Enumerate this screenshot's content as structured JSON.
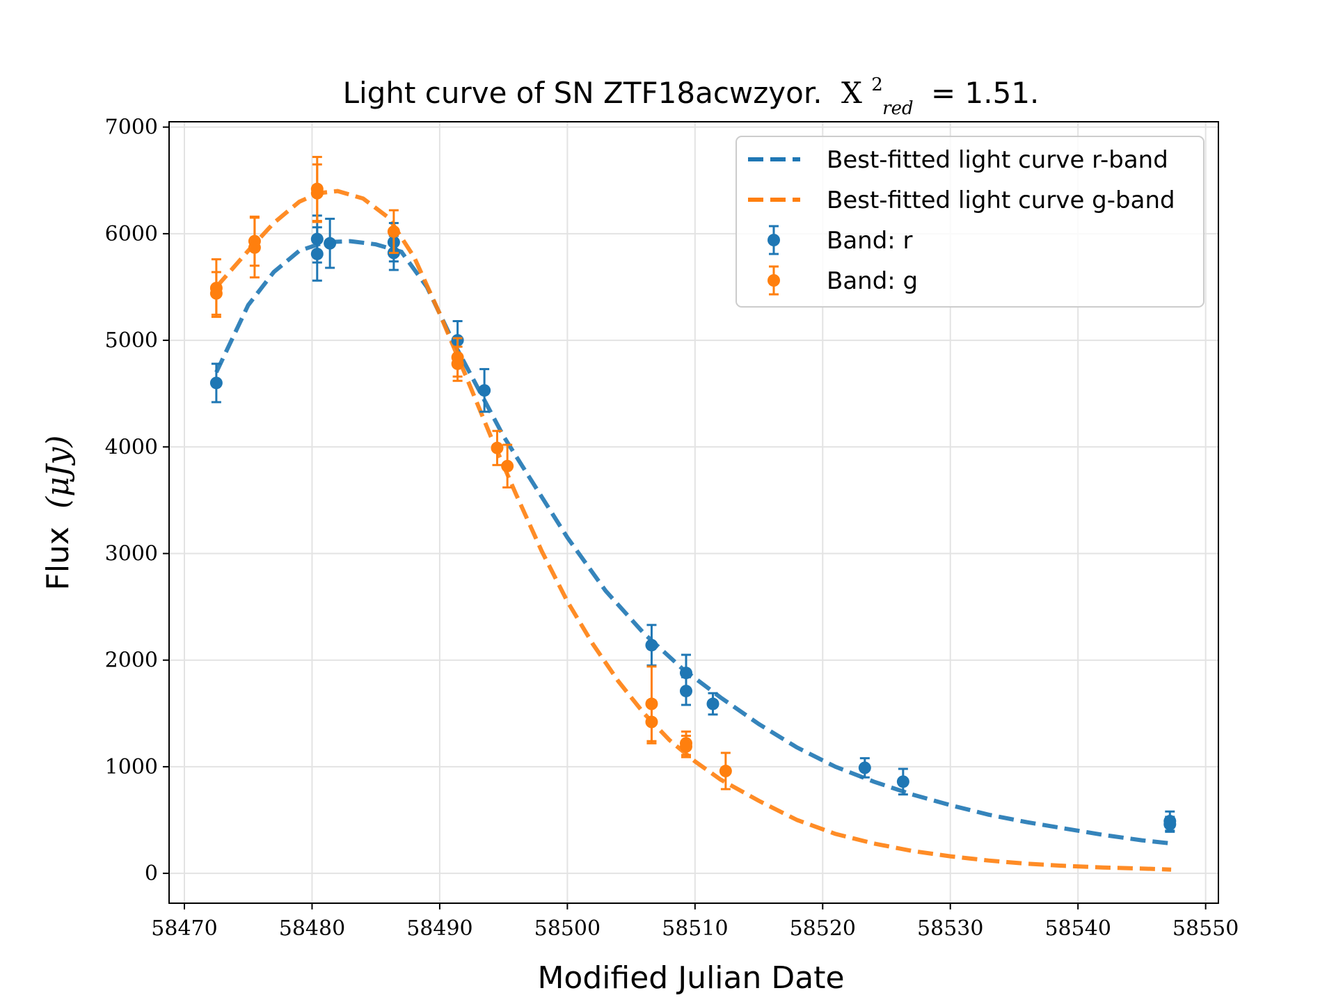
{
  "chart_data": {
    "type": "scatter",
    "title_prefix": "Light curve of SN ZTF18acwzyor.",
    "title_chi_sym": "X",
    "title_chi_sup": "2",
    "title_chi_sub": "red",
    "title_chi_value": "= 1.51.",
    "xlabel": "Modified Julian Date",
    "ylabel_text": "Flux",
    "ylabel_unit": "(μJy)",
    "xlim": [
      58468.8,
      58551
    ],
    "ylim": [
      -280,
      7050
    ],
    "xticks": [
      58470,
      58480,
      58490,
      58500,
      58510,
      58520,
      58530,
      58540,
      58550
    ],
    "yticks": [
      0,
      1000,
      2000,
      3000,
      4000,
      5000,
      6000,
      7000
    ],
    "grid": true,
    "legend_position": "top-right",
    "colors": {
      "r": "#1f77b4",
      "g": "#ff7f0e"
    },
    "legend": [
      {
        "label": "Best-fitted light curve r-band",
        "kind": "line",
        "band": "r"
      },
      {
        "label": "Best-fitted light curve g-band",
        "kind": "line",
        "band": "g"
      },
      {
        "label": "Band: r",
        "kind": "marker",
        "band": "r"
      },
      {
        "label": "Band: g",
        "kind": "marker",
        "band": "g"
      }
    ],
    "fits": [
      {
        "band": "r",
        "x": [
          58472.5,
          58475,
          58477,
          58479,
          58481,
          58483,
          58485,
          58487,
          58489,
          58491,
          58493,
          58495,
          58497,
          58500,
          58503,
          58506,
          58509,
          58512,
          58515,
          58518,
          58521,
          58524,
          58527,
          58530,
          58533,
          58536,
          58539,
          58542,
          58545,
          58547.3
        ],
        "y": [
          4700,
          5330,
          5640,
          5840,
          5920,
          5930,
          5900,
          5830,
          5500,
          5000,
          4550,
          4100,
          3720,
          3150,
          2650,
          2250,
          1920,
          1650,
          1400,
          1180,
          1000,
          860,
          740,
          640,
          550,
          480,
          420,
          360,
          310,
          280
        ]
      },
      {
        "band": "g",
        "x": [
          58472.5,
          58475,
          58477,
          58479,
          58480.5,
          58482,
          58484,
          58486,
          58488,
          58490,
          58492,
          58494,
          58496,
          58498,
          58500,
          58502,
          58504,
          58506,
          58508,
          58510,
          58512,
          58515,
          58518,
          58521,
          58524,
          58527,
          58530,
          58533,
          58536,
          58539,
          58542,
          58545,
          58547.3
        ],
        "y": [
          5500,
          5840,
          6100,
          6300,
          6380,
          6400,
          6330,
          6150,
          5780,
          5250,
          4680,
          4100,
          3550,
          3020,
          2550,
          2150,
          1800,
          1500,
          1250,
          1050,
          880,
          680,
          500,
          370,
          280,
          210,
          160,
          120,
          90,
          70,
          55,
          45,
          35
        ]
      }
    ],
    "series": [
      {
        "band": "r",
        "x": [
          58472.5,
          58480.4,
          58480.4,
          58481.4,
          58486.4,
          58486.4,
          58491.4,
          58493.5,
          58506.6,
          58509.3,
          58509.3,
          58511.4,
          58523.3,
          58526.3,
          58547.2,
          58547.2
        ],
        "y": [
          4600,
          5950,
          5810,
          5910,
          5920,
          5820,
          5000,
          4530,
          2140,
          1880,
          1710,
          1590,
          990,
          860,
          490,
          460
        ],
        "err": [
          180,
          220,
          250,
          230,
          180,
          160,
          180,
          200,
          190,
          170,
          130,
          100,
          90,
          120,
          90,
          70
        ]
      },
      {
        "band": "g",
        "x": [
          58472.5,
          58472.5,
          58475.5,
          58475.5,
          58480.4,
          58480.4,
          58486.4,
          58491.4,
          58491.4,
          58494.5,
          58495.3,
          58506.6,
          58506.6,
          58509.3,
          58509.3,
          58512.4
        ],
        "y": [
          5490,
          5440,
          5930,
          5870,
          6420,
          6380,
          6020,
          4840,
          4780,
          3990,
          3820,
          1590,
          1420,
          1220,
          1190,
          960
        ],
        "err": [
          270,
          200,
          230,
          280,
          300,
          270,
          200,
          180,
          160,
          160,
          200,
          350,
          200,
          110,
          100,
          170
        ]
      }
    ]
  }
}
